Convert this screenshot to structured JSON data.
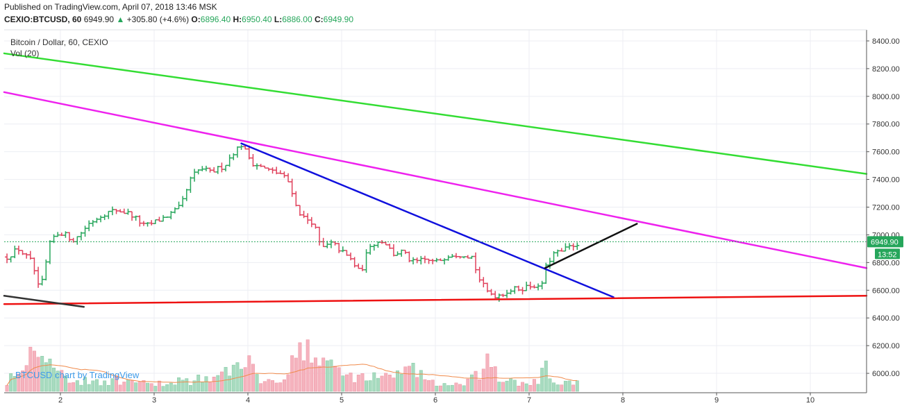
{
  "header": {
    "published": "Published on TradingView.com, April 07, 2018 13:46 MSK",
    "symbol": "CEXIO:BTCUSD, 60",
    "last": "6949.90",
    "change_arrow": "▲",
    "change": "+305.80 (+4.6%)",
    "o_label": "O:",
    "o_value": "6896.40",
    "h_label": "H:",
    "h_value": "6950.40",
    "l_label": "L:",
    "l_value": "6886.00",
    "c_label": "C:",
    "c_value": "6949.90"
  },
  "chart_data": {
    "type": "ohlc",
    "title": "Bitcoin / Dollar, 60, CEXIO",
    "volume_label": "Vol (20)",
    "watermark": "BTCUSD chart by TradingView",
    "price_axis_ticks": [
      "8400.00",
      "8200.00",
      "8000.00",
      "7800.00",
      "7600.00",
      "7400.00",
      "7200.00",
      "7000.00",
      "6800.00",
      "6600.00",
      "6400.00",
      "6200.00",
      "6000.00"
    ],
    "time_axis_ticks": [
      "2",
      "3",
      "4",
      "5",
      "6",
      "7",
      "8",
      "9",
      "10"
    ],
    "ylim": [
      5860,
      8480
    ],
    "xlim": [
      1.4,
      10.6
    ],
    "last_price_label": "6949.90",
    "countdown_label": "13:52",
    "colors": {
      "up": "#26a65b",
      "down": "#e0405b",
      "vol_up": "#a8dbc0",
      "vol_down": "#f5b3be"
    },
    "trendlines": [
      {
        "name": "green-channel-top",
        "color": "#33dd33",
        "points": [
          [
            1.4,
            8310
          ],
          [
            10.6,
            7440
          ]
        ]
      },
      {
        "name": "magenta-resistance",
        "color": "#ee22ee",
        "points": [
          [
            1.4,
            8030
          ],
          [
            10.6,
            6760
          ]
        ]
      },
      {
        "name": "blue-downtrend",
        "color": "#1010dd",
        "points": [
          [
            3.93,
            7660
          ],
          [
            7.9,
            6550
          ]
        ]
      },
      {
        "name": "red-support",
        "color": "#ee1111",
        "points": [
          [
            1.4,
            6500
          ],
          [
            10.6,
            6560
          ]
        ]
      },
      {
        "name": "black-trend-up",
        "color": "#111111",
        "points": [
          [
            7.17,
            6760
          ],
          [
            8.15,
            7080
          ]
        ]
      },
      {
        "name": "gray-left-support",
        "color": "#333333",
        "points": [
          [
            1.4,
            6560
          ],
          [
            2.25,
            6480
          ]
        ]
      }
    ],
    "price_path": [
      [
        1.43,
        6840
      ],
      [
        1.55,
        6900
      ],
      [
        1.7,
        6800
      ],
      [
        1.78,
        6580
      ],
      [
        1.9,
        6970
      ],
      [
        2.0,
        7020
      ],
      [
        2.15,
        6960
      ],
      [
        2.3,
        7080
      ],
      [
        2.45,
        7150
      ],
      [
        2.6,
        7180
      ],
      [
        2.75,
        7150
      ],
      [
        2.9,
        7060
      ],
      [
        3.0,
        7090
      ],
      [
        3.15,
        7140
      ],
      [
        3.28,
        7200
      ],
      [
        3.4,
        7420
      ],
      [
        3.5,
        7480
      ],
      [
        3.6,
        7450
      ],
      [
        3.75,
        7500
      ],
      [
        3.85,
        7600
      ],
      [
        3.93,
        7650
      ],
      [
        4.05,
        7520
      ],
      [
        4.2,
        7470
      ],
      [
        4.35,
        7440
      ],
      [
        4.45,
        7370
      ],
      [
        4.52,
        7190
      ],
      [
        4.6,
        7120
      ],
      [
        4.7,
        7090
      ],
      [
        4.78,
        6900
      ],
      [
        4.9,
        6940
      ],
      [
        5.0,
        6880
      ],
      [
        5.1,
        6820
      ],
      [
        5.2,
        6720
      ],
      [
        5.3,
        6930
      ],
      [
        5.45,
        6960
      ],
      [
        5.55,
        6860
      ],
      [
        5.65,
        6880
      ],
      [
        5.75,
        6800
      ],
      [
        5.9,
        6820
      ],
      [
        6.0,
        6800
      ],
      [
        6.15,
        6860
      ],
      [
        6.3,
        6860
      ],
      [
        6.4,
        6840
      ],
      [
        6.45,
        6700
      ],
      [
        6.55,
        6590
      ],
      [
        6.65,
        6560
      ],
      [
        6.8,
        6600
      ],
      [
        6.95,
        6620
      ],
      [
        7.05,
        6640
      ],
      [
        7.12,
        6600
      ],
      [
        7.17,
        6750
      ],
      [
        7.25,
        6860
      ],
      [
        7.35,
        6880
      ],
      [
        7.45,
        6920
      ],
      [
        7.55,
        6950
      ]
    ],
    "volume_profile": [
      [
        1.43,
        0.15
      ],
      [
        1.55,
        0.35
      ],
      [
        1.7,
        0.55
      ],
      [
        1.78,
        0.9
      ],
      [
        1.9,
        0.3
      ],
      [
        2.0,
        0.25
      ],
      [
        2.2,
        0.12
      ],
      [
        2.5,
        0.15
      ],
      [
        2.8,
        0.12
      ],
      [
        3.0,
        0.08
      ],
      [
        3.2,
        0.14
      ],
      [
        3.5,
        0.16
      ],
      [
        3.7,
        0.18
      ],
      [
        3.85,
        0.3
      ],
      [
        3.93,
        0.5
      ],
      [
        4.1,
        0.2
      ],
      [
        4.3,
        0.15
      ],
      [
        4.45,
        0.35
      ],
      [
        4.55,
        0.55
      ],
      [
        4.7,
        0.4
      ],
      [
        4.78,
        0.6
      ],
      [
        4.9,
        0.3
      ],
      [
        5.1,
        0.22
      ],
      [
        5.3,
        0.18
      ],
      [
        5.55,
        0.2
      ],
      [
        5.7,
        0.4
      ],
      [
        5.8,
        0.25
      ],
      [
        6.0,
        0.1
      ],
      [
        6.3,
        0.08
      ],
      [
        6.45,
        0.2
      ],
      [
        6.55,
        0.35
      ],
      [
        6.7,
        0.15
      ],
      [
        6.9,
        0.1
      ],
      [
        7.1,
        0.12
      ],
      [
        7.17,
        0.3
      ],
      [
        7.3,
        0.12
      ],
      [
        7.45,
        0.1
      ],
      [
        7.55,
        0.1
      ]
    ]
  }
}
